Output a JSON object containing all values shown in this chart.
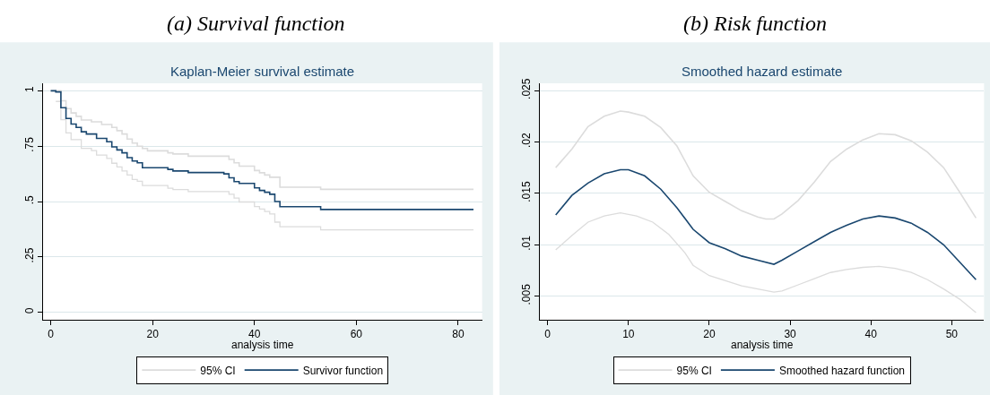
{
  "chart_data": [
    {
      "type": "step",
      "title": "(a) Survival function",
      "subtitle": "Kaplan-Meier survival estimate",
      "xlabel": "analysis time",
      "series": [
        {
          "name": "95% CI",
          "color": "#dcdcdc",
          "x": [
            0,
            2,
            3,
            4,
            5,
            6,
            8,
            10,
            12,
            13,
            14,
            15,
            16,
            17,
            18,
            19,
            23,
            24,
            27,
            35,
            36,
            37,
            40,
            41,
            42,
            43,
            45,
            53,
            83
          ],
          "values": [
            1,
            0.955,
            0.92,
            0.9,
            0.885,
            0.868,
            0.86,
            0.848,
            0.835,
            0.82,
            0.805,
            0.782,
            0.764,
            0.75,
            0.74,
            0.729,
            0.72,
            0.715,
            0.705,
            0.69,
            0.675,
            0.66,
            0.64,
            0.63,
            0.62,
            0.61,
            0.565,
            0.555,
            0.555
          ]
        },
        {
          "color": "#dcdcdc",
          "x": [
            1,
            2,
            3,
            4,
            6,
            8,
            9,
            11,
            12,
            13,
            14,
            15,
            16,
            17,
            18,
            23,
            24,
            27,
            35,
            36,
            37,
            40,
            41,
            42,
            43,
            44,
            45,
            53,
            83
          ],
          "values": [
            0.952,
            0.87,
            0.81,
            0.78,
            0.74,
            0.73,
            0.71,
            0.695,
            0.673,
            0.656,
            0.638,
            0.62,
            0.6,
            0.592,
            0.572,
            0.56,
            0.554,
            0.545,
            0.533,
            0.516,
            0.498,
            0.477,
            0.466,
            0.455,
            0.444,
            0.407,
            0.386,
            0.372,
            0.372
          ]
        },
        {
          "name": "Survivor function",
          "color": "#1a476f",
          "x": [
            0,
            1,
            2,
            3,
            4,
            5,
            6,
            7,
            9,
            11,
            12,
            13,
            14,
            15,
            16,
            17,
            18,
            23,
            24,
            27,
            34,
            35,
            36,
            37,
            40,
            41,
            42,
            43,
            44,
            45,
            53,
            83
          ],
          "values": [
            1,
            0.995,
            0.924,
            0.875,
            0.85,
            0.835,
            0.815,
            0.805,
            0.785,
            0.77,
            0.747,
            0.733,
            0.72,
            0.698,
            0.683,
            0.675,
            0.653,
            0.645,
            0.638,
            0.631,
            0.625,
            0.607,
            0.59,
            0.582,
            0.562,
            0.55,
            0.542,
            0.533,
            0.5,
            0.477,
            0.464,
            0.464
          ]
        }
      ],
      "xlim": [
        -1.5,
        84.7
      ],
      "ylim": [
        -0.034,
        1.034
      ],
      "xticks": [
        0,
        20,
        40,
        60,
        80
      ],
      "yticks": [
        {
          "value": 0,
          "label": "0"
        },
        {
          "value": 0.25,
          "label": ".25"
        },
        {
          "value": 0.5,
          "label": ".5"
        },
        {
          "value": 0.75,
          "label": ".75"
        },
        {
          "value": 1,
          "label": "1"
        }
      ],
      "grid": "y",
      "legend": "bottom"
    },
    {
      "type": "line",
      "title": "(b) Risk function",
      "subtitle": "Smoothed hazard estimate",
      "xlabel": "analysis time",
      "series": [
        {
          "name": "95% CI",
          "color": "#dcdcdc",
          "x": [
            1,
            3,
            5,
            7,
            9,
            10,
            12,
            14,
            16,
            18,
            20,
            22,
            24,
            26,
            27,
            28,
            29,
            31,
            33,
            35,
            37,
            39,
            41,
            43,
            45,
            47,
            49,
            51,
            53
          ],
          "values": [
            0.0175,
            0.0193,
            0.0215,
            0.0225,
            0.023,
            0.0229,
            0.0225,
            0.0214,
            0.0196,
            0.0167,
            0.0151,
            0.0142,
            0.0133,
            0.0127,
            0.0125,
            0.0125,
            0.013,
            0.0143,
            0.0161,
            0.0181,
            0.0193,
            0.0202,
            0.0208,
            0.0207,
            0.0201,
            0.019,
            0.0175,
            0.0151,
            0.0126
          ]
        },
        {
          "color": "#dcdcdc",
          "x": [
            1,
            3,
            5,
            7,
            9,
            11,
            13,
            15,
            17,
            18,
            20,
            22,
            24,
            26,
            28,
            29,
            31,
            33,
            35,
            37,
            39,
            41,
            43,
            45,
            47,
            49,
            51,
            53
          ],
          "values": [
            0.0095,
            0.0109,
            0.0122,
            0.0128,
            0.0131,
            0.0128,
            0.0122,
            0.011,
            0.0092,
            0.008,
            0.007,
            0.0065,
            0.006,
            0.0057,
            0.0054,
            0.0055,
            0.0061,
            0.0067,
            0.0073,
            0.0076,
            0.0078,
            0.0079,
            0.0077,
            0.0073,
            0.0066,
            0.0057,
            0.0047,
            0.0034
          ]
        },
        {
          "name": "Smoothed hazard function",
          "color": "#1a476f",
          "x": [
            1,
            3,
            5,
            7,
            9,
            10,
            12,
            14,
            16,
            18,
            20,
            22,
            24,
            26,
            28,
            29,
            31,
            33,
            35,
            37,
            39,
            41,
            43,
            45,
            47,
            49,
            51,
            53
          ],
          "values": [
            0.0129,
            0.0148,
            0.016,
            0.0169,
            0.0173,
            0.0173,
            0.0167,
            0.0154,
            0.0136,
            0.0115,
            0.0102,
            0.0096,
            0.0089,
            0.0085,
            0.0081,
            0.0085,
            0.0094,
            0.0103,
            0.0112,
            0.0119,
            0.0125,
            0.0128,
            0.0126,
            0.0121,
            0.0112,
            0.01,
            0.0083,
            0.0066
          ]
        }
      ],
      "xlim": [
        -1,
        54
      ],
      "ylim": [
        0.0027,
        0.0257
      ],
      "xticks": [
        0,
        10,
        20,
        30,
        40,
        50
      ],
      "yticks": [
        {
          "value": 0.005,
          "label": ".005"
        },
        {
          "value": 0.01,
          "label": ".01"
        },
        {
          "value": 0.015,
          "label": ".015"
        },
        {
          "value": 0.02,
          "label": ".02"
        },
        {
          "value": 0.025,
          "label": ".025"
        }
      ],
      "grid": "y",
      "legend": "bottom"
    }
  ]
}
